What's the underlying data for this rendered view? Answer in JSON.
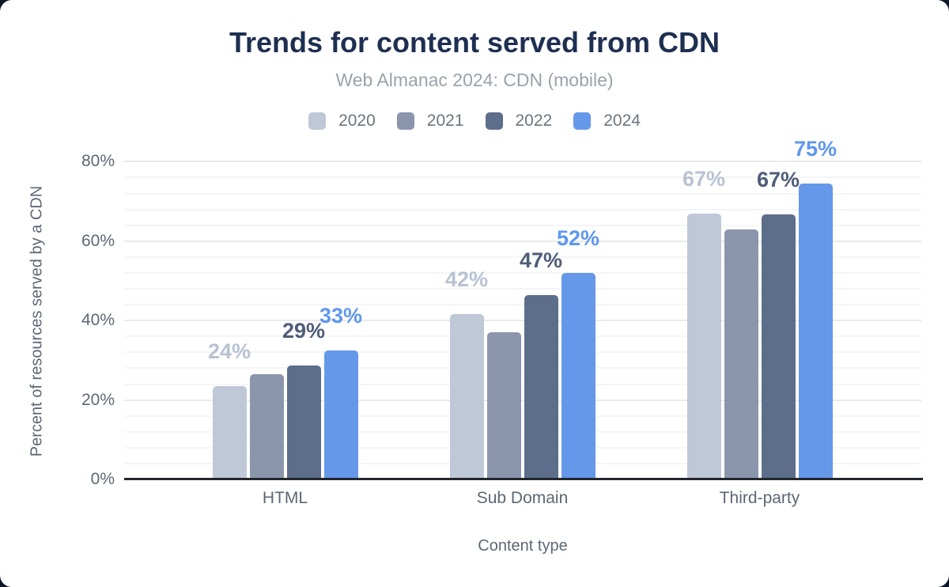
{
  "page": {
    "background_color": "#0e1828",
    "card_color": "#ffffff"
  },
  "chart_data": {
    "type": "bar",
    "title": "Trends for content served from CDN",
    "subtitle": "Web Almanac 2024: CDN (mobile)",
    "xlabel": "Content type",
    "ylabel": "Percent of resources served by a CDN",
    "categories": [
      "HTML",
      "Sub Domain",
      "Third-party"
    ],
    "series": [
      {
        "name": "2020",
        "color": "#bfc8d6",
        "label_color": "#b8c2d2",
        "values": [
          23.5,
          41.7,
          67
        ],
        "data_labels": [
          "24%",
          "42%",
          "67%"
        ]
      },
      {
        "name": "2021",
        "color": "#8b96ad",
        "label_color": null,
        "values": [
          26.5,
          37,
          63
        ],
        "data_labels": [
          null,
          null,
          null
        ]
      },
      {
        "name": "2022",
        "color": "#5d6e8b",
        "label_color": "#4e5d78",
        "values": [
          28.7,
          46.5,
          66.8
        ],
        "data_labels": [
          "29%",
          "47%",
          "67%"
        ]
      },
      {
        "name": "2024",
        "color": "#6698ea",
        "label_color": "#5f97ee",
        "values": [
          32.5,
          52,
          74.5
        ],
        "data_labels": [
          "33%",
          "52%",
          "75%"
        ]
      }
    ],
    "y_tick_labels": [
      "0%",
      "20%",
      "40%",
      "60%",
      "80%"
    ],
    "y_tick_values": [
      0,
      20,
      40,
      60,
      80
    ],
    "ylim": [
      0,
      80
    ],
    "grid": {
      "major_step": 20,
      "minor_step": 4,
      "grid_on": true
    },
    "legend_position": "top",
    "title_color": "#1e2f51",
    "subtitle_color": "#9aa2ab",
    "axis_text_color": "#5d6775",
    "axis_line_color": "#23272d"
  }
}
